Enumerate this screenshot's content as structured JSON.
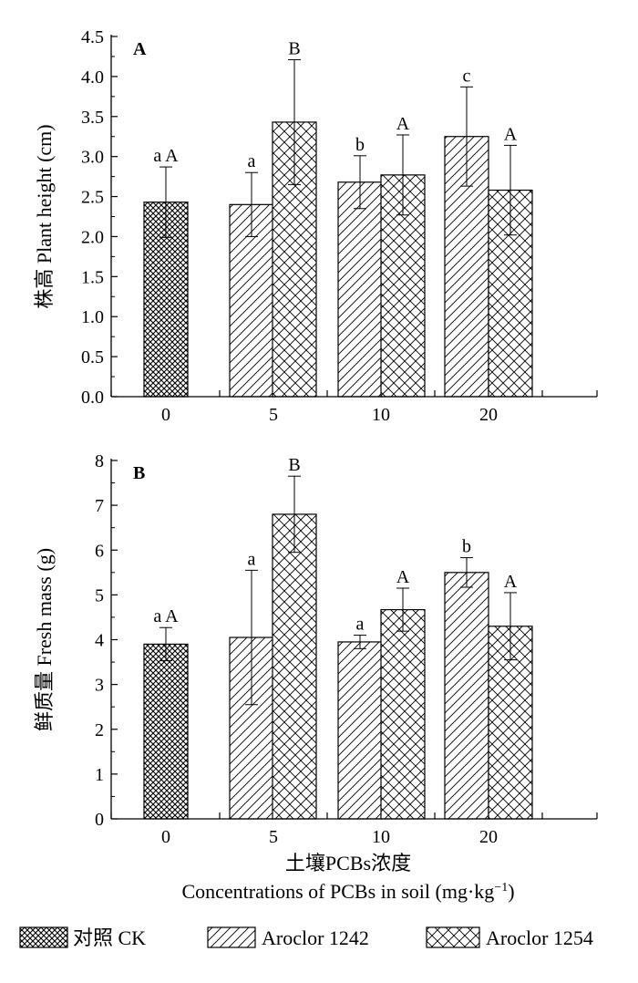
{
  "x_axis": {
    "title_cn": "土壤PCBs浓度",
    "title_en_prefix": "Concentrations of PCBs in soil (mg·kg",
    "title_en_sup": "−1",
    "title_en_suffix": ")"
  },
  "legend": [
    {
      "label": "对照 CK",
      "pattern": "crosshatch-dense"
    },
    {
      "label": "Aroclor 1242",
      "pattern": "diagonal"
    },
    {
      "label": "Aroclor 1254",
      "pattern": "crosshatch"
    }
  ],
  "chart_data": [
    {
      "type": "bar",
      "panel_label": "A",
      "ylabel": "株高  Plant height (cm)",
      "ylim": [
        0,
        4.5
      ],
      "yticks": [
        "0.0",
        "0.5",
        "1.0",
        "1.5",
        "2.0",
        "2.5",
        "3.0",
        "3.5",
        "4.0",
        "4.5"
      ],
      "categories": [
        "0",
        "5",
        "10",
        "20"
      ],
      "series": [
        {
          "name": "对照 CK",
          "values": [
            2.43,
            null,
            null,
            null
          ],
          "errors": [
            0.44,
            null,
            null,
            null
          ],
          "labels": [
            "a A",
            "",
            "",
            ""
          ]
        },
        {
          "name": "Aroclor 1242",
          "values": [
            null,
            2.4,
            2.68,
            3.25
          ],
          "errors": [
            null,
            0.4,
            0.33,
            0.62
          ],
          "labels": [
            "",
            "a",
            "b",
            "c"
          ]
        },
        {
          "name": "Aroclor 1254",
          "values": [
            null,
            3.43,
            2.77,
            2.58
          ],
          "errors": [
            null,
            0.78,
            0.5,
            0.56
          ],
          "labels": [
            "",
            "B",
            "A",
            "A"
          ]
        }
      ]
    },
    {
      "type": "bar",
      "panel_label": "B",
      "ylabel": "鲜质量  Fresh mass (g)",
      "ylim": [
        0,
        8
      ],
      "yticks": [
        "0",
        "1",
        "2",
        "3",
        "4",
        "5",
        "6",
        "7",
        "8"
      ],
      "categories": [
        "0",
        "5",
        "10",
        "20"
      ],
      "series": [
        {
          "name": "对照 CK",
          "values": [
            3.9,
            null,
            null,
            null
          ],
          "errors": [
            0.37,
            null,
            null,
            null
          ],
          "labels": [
            "a A",
            "",
            "",
            ""
          ]
        },
        {
          "name": "Aroclor 1242",
          "values": [
            null,
            4.05,
            3.95,
            5.5
          ],
          "errors": [
            null,
            1.5,
            0.15,
            0.33
          ],
          "labels": [
            "",
            "a",
            "a",
            "b"
          ]
        },
        {
          "name": "Aroclor 1254",
          "values": [
            null,
            6.8,
            4.67,
            4.3
          ],
          "errors": [
            null,
            0.85,
            0.48,
            0.75
          ],
          "labels": [
            "",
            "B",
            "A",
            "A"
          ]
        }
      ]
    }
  ]
}
